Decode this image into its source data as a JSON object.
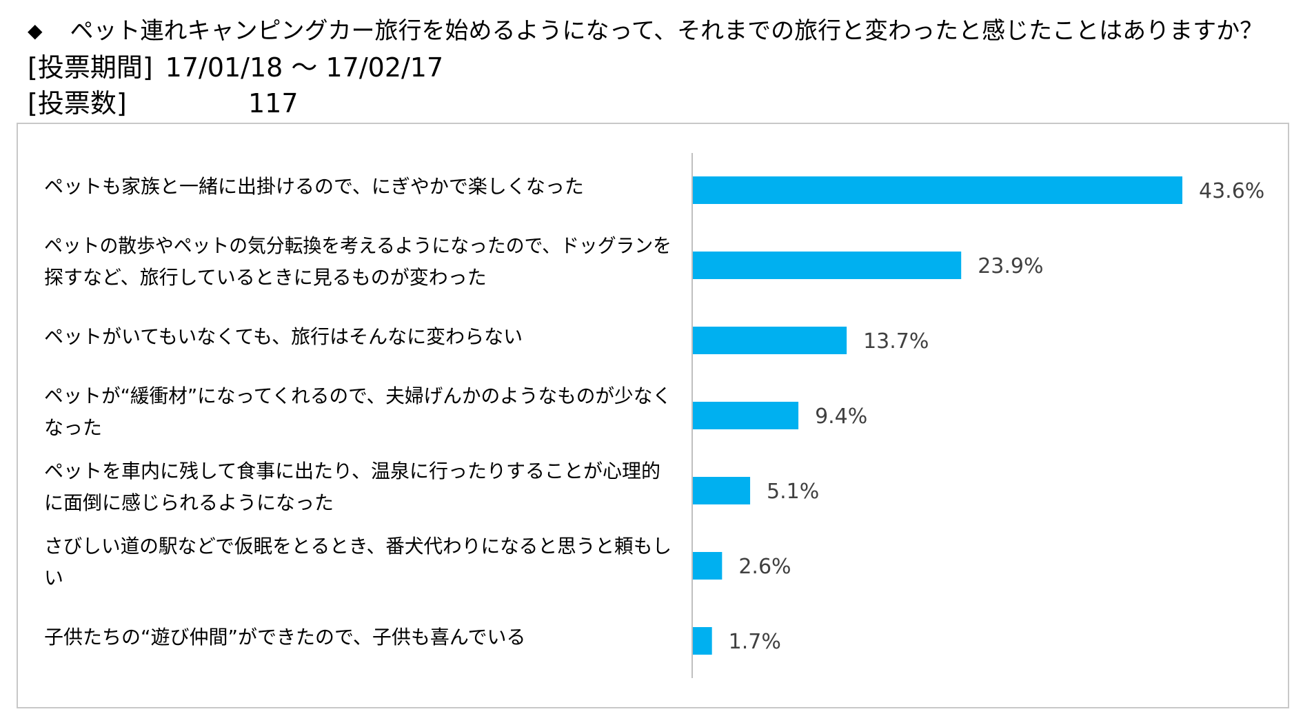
{
  "header": {
    "question": "ペット連れキャンピングカー旅行を始めるようになって、それまでの旅行と変わったと感じたことはありますか？",
    "period_label": "[投票期間]",
    "period_value": "17/01/18 ～ 17/02/17",
    "count_label": "[投票数]",
    "count_value": "117"
  },
  "chart_data": {
    "type": "bar",
    "orientation": "horizontal",
    "bar_color": "#00B0F0",
    "value_suffix": "%",
    "categories": [
      [
        "ペットも家族と一緒に出掛けるので、にぎやかで楽しくなった"
      ],
      [
        "ペットの散歩やペットの気分転換を考えるようになったので、ドッグランを",
        "探すなど、旅行しているときに見るものが変わった"
      ],
      [
        "ペットがいてもいなくても、旅行はそんなに変わらない"
      ],
      [
        "ペットが“緩衝材”になってくれるので、夫婦げんかのようなものが少なく",
        "なった"
      ],
      [
        "ペットを車内に残して食事に出たり、温泉に行ったりすることが心理的",
        "に面倒に感じられるようになった"
      ],
      [
        "さびしい道の駅などで仮眠をとるとき、番犬代わりになると思うと頼もし",
        "い"
      ],
      [
        "子供たちの“遊び仲間”ができたので、子供も喜んでいる"
      ]
    ],
    "values": [
      43.6,
      23.9,
      13.7,
      9.4,
      5.1,
      2.6,
      1.7
    ],
    "labels": [
      "43.6%",
      "23.9%",
      "13.7%",
      "9.4%",
      "5.1%",
      "2.6%",
      "1.7%"
    ],
    "xlim": [
      0,
      43.6
    ],
    "grid": false,
    "legend": "none"
  }
}
